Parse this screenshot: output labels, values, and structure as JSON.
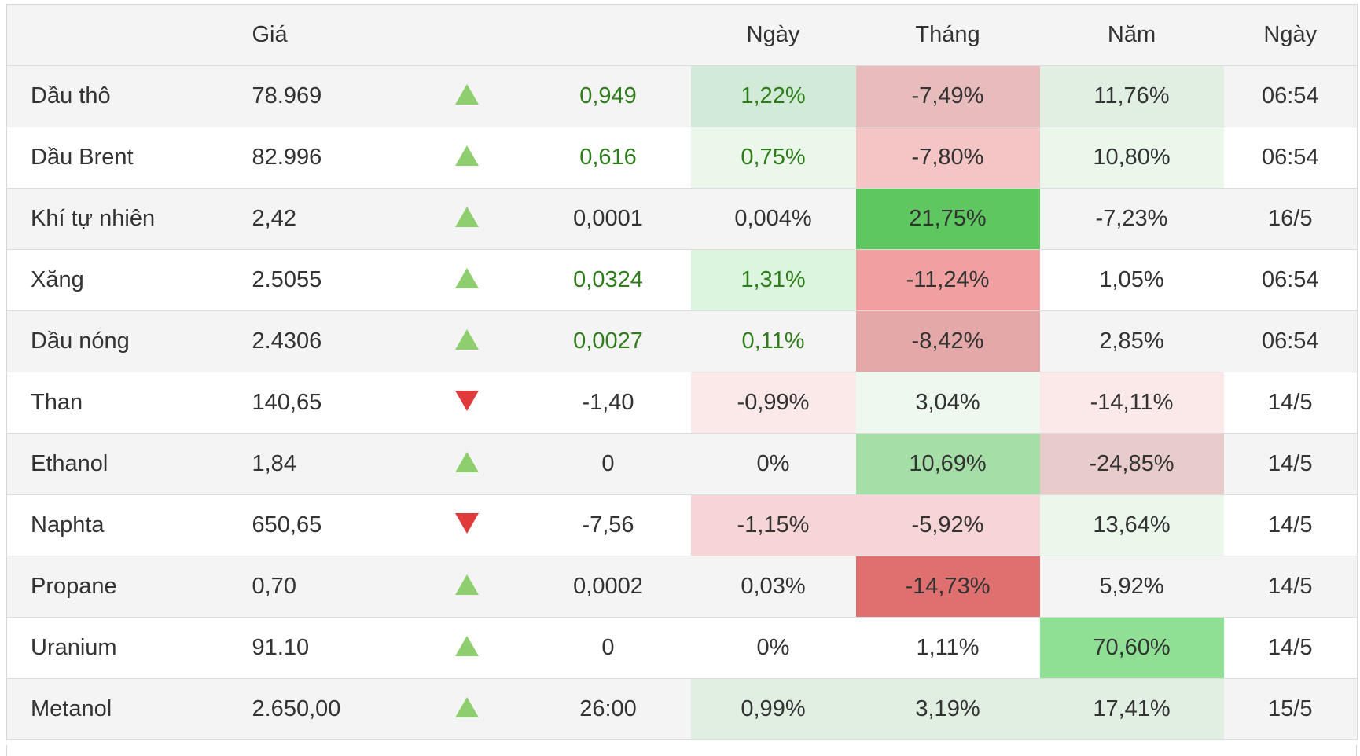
{
  "header": {
    "name": "",
    "price": "Giá",
    "arrow": "",
    "change": "",
    "day": "Ngày",
    "month": "Tháng",
    "year": "Năm",
    "time": "Ngày"
  },
  "colors": {
    "positive_text": "#2e7d1a",
    "up_arrow": "#8fce6f",
    "down_arrow": "#e03a3a"
  },
  "rows": [
    {
      "name": "Dầu thô",
      "price": "78.969",
      "direction": "up",
      "change": "0,949",
      "change_positive": true,
      "day": "1,22%",
      "day_positive": true,
      "month": "-7,49%",
      "year": "11,76%",
      "time": "06:54",
      "day_bg": "#d2ebd8",
      "month_bg": "#e8bcbc",
      "year_bg": "#e1efe3"
    },
    {
      "name": "Dầu Brent",
      "price": "82.996",
      "direction": "up",
      "change": "0,616",
      "change_positive": true,
      "day": "0,75%",
      "day_positive": true,
      "month": "-7,80%",
      "year": "10,80%",
      "time": "06:54",
      "day_bg": "#eaf7ea",
      "month_bg": "#f5c4c4",
      "year_bg": "#eaf7ea"
    },
    {
      "name": "Khí tự nhiên",
      "price": "2,42",
      "direction": "up",
      "change": "0,0001",
      "change_positive": false,
      "day": "0,004%",
      "day_positive": false,
      "month": "21,75%",
      "year": "-7,23%",
      "time": "16/5",
      "day_bg": "",
      "month_bg": "#5ec760",
      "year_bg": ""
    },
    {
      "name": "Xăng",
      "price": "2.5055",
      "direction": "up",
      "change": "0,0324",
      "change_positive": true,
      "day": "1,31%",
      "day_positive": true,
      "month": "-11,24%",
      "year": "1,05%",
      "time": "06:54",
      "day_bg": "#dcf5df",
      "month_bg": "#f0a0a0",
      "year_bg": ""
    },
    {
      "name": "Dầu nóng",
      "price": "2.4306",
      "direction": "up",
      "change": "0,0027",
      "change_positive": true,
      "day": "0,11%",
      "day_positive": true,
      "month": "-8,42%",
      "year": "2,85%",
      "time": "06:54",
      "day_bg": "",
      "month_bg": "#e4a8a8",
      "year_bg": ""
    },
    {
      "name": "Than",
      "price": "140,65",
      "direction": "down",
      "change": "-1,40",
      "change_positive": false,
      "day": "-0,99%",
      "day_positive": false,
      "month": "3,04%",
      "year": "-14,11%",
      "time": "14/5",
      "day_bg": "#fbe9e9",
      "month_bg": "#eef8ee",
      "year_bg": "#fbe9e9"
    },
    {
      "name": "Ethanol",
      "price": "1,84",
      "direction": "up",
      "change": "0",
      "change_positive": false,
      "day": "0%",
      "day_positive": false,
      "month": "10,69%",
      "year": "-24,85%",
      "time": "14/5",
      "day_bg": "",
      "month_bg": "#a6dea8",
      "year_bg": "#e8cccc"
    },
    {
      "name": "Naphta",
      "price": "650,65",
      "direction": "down",
      "change": "-7,56",
      "change_positive": false,
      "day": "-1,15%",
      "day_positive": false,
      "month": "-5,92%",
      "year": "13,64%",
      "time": "14/5",
      "day_bg": "#f7d4d6",
      "month_bg": "#f7d4d6",
      "year_bg": "#eaf7ea"
    },
    {
      "name": "Propane",
      "price": "0,70",
      "direction": "up",
      "change": "0,0002",
      "change_positive": false,
      "day": "0,03%",
      "day_positive": false,
      "month": "-14,73%",
      "year": "5,92%",
      "time": "14/5",
      "day_bg": "",
      "month_bg": "#e07070",
      "year_bg": ""
    },
    {
      "name": "Uranium",
      "price": "91.10",
      "direction": "up",
      "change": "0",
      "change_positive": false,
      "day": "0%",
      "day_positive": false,
      "month": "1,11%",
      "year": "70,60%",
      "time": "14/5",
      "day_bg": "",
      "month_bg": "",
      "year_bg": "#8fdf94"
    },
    {
      "name": "Metanol",
      "price": "2.650,00",
      "direction": "up",
      "change": "26:00",
      "change_positive": false,
      "day": "0,99%",
      "day_positive": false,
      "month": "3,19%",
      "year": "17,41%",
      "time": "15/5",
      "day_bg": "#e1efe3",
      "month_bg": "#e1efe3",
      "year_bg": "#e1efe3"
    }
  ]
}
